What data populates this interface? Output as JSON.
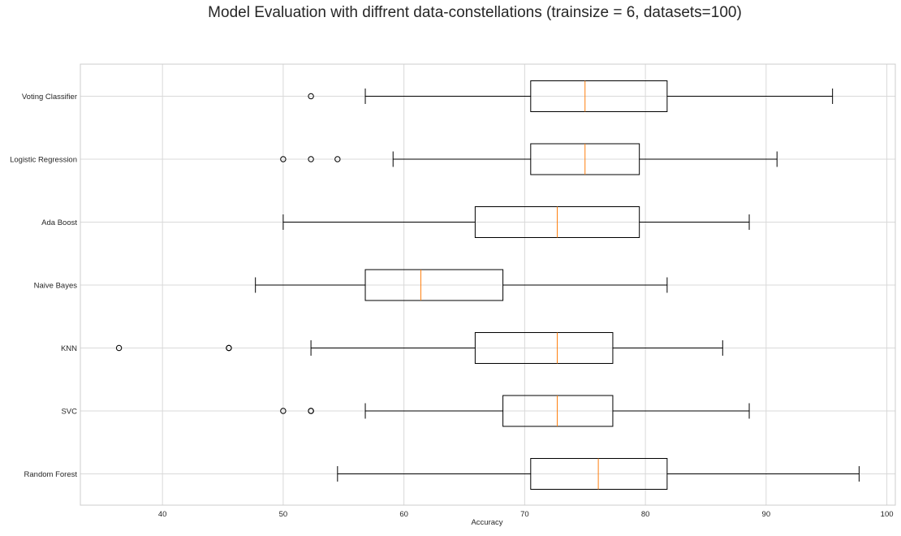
{
  "chart_data": {
    "type": "boxplot",
    "orientation": "horizontal",
    "title": "Model Evaluation with diffrent data-constellations (trainsize = 6, datasets=100)",
    "xlabel": "Accuracy",
    "ylabel": "",
    "xlim": [
      33.2,
      100.7
    ],
    "xticks": [
      40,
      50,
      60,
      70,
      80,
      90,
      100
    ],
    "grid": true,
    "colors": {
      "box": "#000000",
      "median": "#ff7f0e",
      "grid": "#d9d9d9",
      "spine": "#cccccc",
      "text": "#262626"
    },
    "series": [
      {
        "name": "Voting Classifier",
        "whislo": 56.8,
        "q1": 70.5,
        "med": 75.0,
        "q3": 81.8,
        "whishi": 95.5,
        "fliers": [
          52.3
        ]
      },
      {
        "name": "Logistic Regression",
        "whislo": 59.1,
        "q1": 70.5,
        "med": 75.0,
        "q3": 79.5,
        "whishi": 90.9,
        "fliers": [
          50.0,
          52.3,
          54.5
        ]
      },
      {
        "name": "Ada Boost",
        "whislo": 50.0,
        "q1": 65.9,
        "med": 72.7,
        "q3": 79.5,
        "whishi": 88.6,
        "fliers": []
      },
      {
        "name": "Naive Bayes",
        "whislo": 47.7,
        "q1": 56.8,
        "med": 61.4,
        "q3": 68.2,
        "whishi": 81.8,
        "fliers": []
      },
      {
        "name": "KNN",
        "whislo": 52.3,
        "q1": 65.9,
        "med": 72.7,
        "q3": 77.3,
        "whishi": 86.4,
        "fliers": [
          36.4,
          45.5,
          45.5
        ]
      },
      {
        "name": "SVC",
        "whislo": 56.8,
        "q1": 68.2,
        "med": 72.7,
        "q3": 77.3,
        "whishi": 88.6,
        "fliers": [
          50.0,
          52.3,
          52.3
        ]
      },
      {
        "name": "Random Forest",
        "whislo": 54.5,
        "q1": 70.5,
        "med": 76.1,
        "q3": 81.8,
        "whishi": 97.7,
        "fliers": []
      }
    ]
  }
}
